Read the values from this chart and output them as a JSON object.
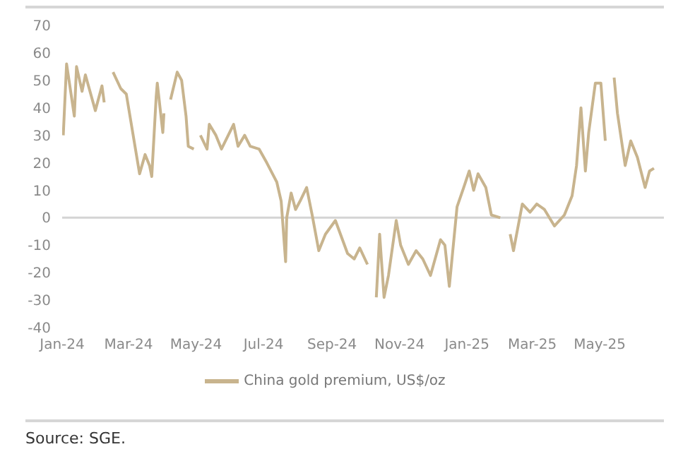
{
  "chart_data": {
    "type": "line",
    "x": [
      "2024-01-02",
      "2024-01-05",
      "2024-01-12",
      "2024-01-14",
      "2024-01-19",
      "2024-01-22",
      "2024-01-31",
      "2024-02-06",
      "2024-02-08",
      "2024-02-12",
      "2024-02-16",
      "2024-02-23",
      "2024-02-28",
      "2024-03-11",
      "2024-03-16",
      "2024-03-20",
      "2024-03-22",
      "2024-03-26",
      "2024-03-27",
      "2024-04-01",
      "2024-04-02",
      "2024-04-05",
      "2024-04-08",
      "2024-04-14",
      "2024-04-18",
      "2024-04-22",
      "2024-04-24",
      "2024-04-29",
      "2024-05-03",
      "2024-05-05",
      "2024-05-11",
      "2024-05-13",
      "2024-05-19",
      "2024-05-24",
      "2024-06-04",
      "2024-06-08",
      "2024-06-14",
      "2024-06-19",
      "2024-06-27",
      "2024-07-04",
      "2024-07-13",
      "2024-07-17",
      "2024-07-21",
      "2024-07-22",
      "2024-07-26",
      "2024-07-30",
      "2024-08-03",
      "2024-08-09",
      "2024-08-14",
      "2024-08-20",
      "2024-08-26",
      "2024-09-04",
      "2024-09-15",
      "2024-09-21",
      "2024-09-26",
      "2024-10-03",
      "2024-10-07",
      "2024-10-11",
      "2024-10-14",
      "2024-10-18",
      "2024-10-22",
      "2024-10-29",
      "2024-11-02",
      "2024-11-09",
      "2024-11-16",
      "2024-11-22",
      "2024-11-29",
      "2024-12-08",
      "2024-12-12",
      "2024-12-16",
      "2024-12-23",
      "2024-12-29",
      "2025-01-03",
      "2025-01-07",
      "2025-01-11",
      "2025-01-18",
      "2025-01-23",
      "2025-01-31",
      "2025-02-05",
      "2025-02-09",
      "2025-02-12",
      "2025-02-20",
      "2025-02-27",
      "2025-03-05",
      "2025-03-12",
      "2025-03-21",
      "2025-03-30",
      "2025-04-06",
      "2025-04-10",
      "2025-04-14",
      "2025-04-18",
      "2025-04-21",
      "2025-04-27",
      "2025-05-02",
      "2025-05-06",
      "2025-05-10",
      "2025-05-14",
      "2025-05-17",
      "2025-05-24",
      "2025-05-29",
      "2025-06-04",
      "2025-06-11",
      "2025-06-15",
      "2025-06-19"
    ],
    "series": [
      {
        "name": "China gold premium, US$/oz",
        "color": "#c8b48e",
        "values": [
          30,
          56,
          37,
          55,
          46,
          52,
          39,
          48,
          42,
          null,
          53,
          47,
          45,
          16,
          23,
          19,
          15,
          44,
          49,
          31,
          38,
          null,
          43,
          53,
          50,
          37,
          26,
          25,
          null,
          30,
          25,
          34,
          30,
          25,
          34,
          26,
          30,
          26,
          25,
          20,
          13,
          6,
          -16,
          0,
          9,
          3,
          6,
          11,
          1,
          -12,
          -6,
          -1,
          -13,
          -15,
          -11,
          -17,
          null,
          -29,
          -6,
          -29,
          -21,
          -1,
          -10,
          -17,
          -12,
          -15,
          -21,
          -8,
          -10,
          -25,
          4,
          11,
          17,
          10,
          16,
          11,
          1,
          0,
          null,
          -6,
          -12,
          5,
          2,
          5,
          3,
          -3,
          1,
          8,
          19,
          40,
          17,
          31,
          49,
          49,
          28,
          null,
          51,
          38,
          19,
          28,
          22,
          11,
          17,
          18
        ]
      }
    ],
    "xlim": [
      "2024-01-01",
      "2025-06-28"
    ],
    "xticks": [
      {
        "value": "2024-01-01",
        "label": "Jan-24"
      },
      {
        "value": "2024-03-01",
        "label": "Mar-24"
      },
      {
        "value": "2024-05-01",
        "label": "May-24"
      },
      {
        "value": "2024-07-01",
        "label": "Jul-24"
      },
      {
        "value": "2024-09-01",
        "label": "Sep-24"
      },
      {
        "value": "2024-11-01",
        "label": "Nov-24"
      },
      {
        "value": "2025-01-01",
        "label": "Jan-25"
      },
      {
        "value": "2025-03-01",
        "label": "Mar-25"
      },
      {
        "value": "2025-05-01",
        "label": "May-25"
      }
    ],
    "ylim": [
      -40,
      70
    ],
    "yticks": [
      -40,
      -30,
      -20,
      -10,
      0,
      10,
      20,
      30,
      40,
      50,
      60,
      70
    ],
    "ref_lines": [
      {
        "axis": "y",
        "value": 0,
        "color": "#d4d4d4"
      }
    ],
    "grid": false,
    "legend": "bottom",
    "marker": "none",
    "line_style": "solid",
    "annotations": [
      "Source: SGE."
    ]
  }
}
